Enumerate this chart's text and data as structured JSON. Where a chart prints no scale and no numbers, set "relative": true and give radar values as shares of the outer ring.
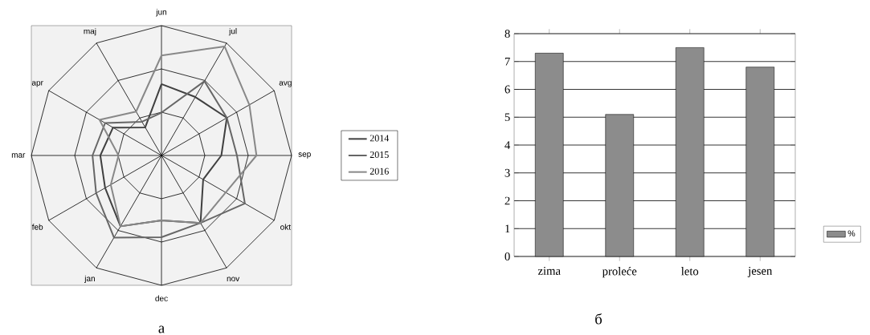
{
  "chart_data": [
    {
      "type": "radar",
      "categories": [
        "jun",
        "jul",
        "avg",
        "sep",
        "okt",
        "nov",
        "dec",
        "jan",
        "feb",
        "mar",
        "apr",
        "maj"
      ],
      "relative": true,
      "grid": true,
      "legend": "right",
      "annotations": [
        "a"
      ],
      "series": [
        {
          "name": "2014",
          "color": "#404040",
          "values": [
            0.55,
            0.52,
            0.58,
            0.46,
            0.37,
            0.6,
            0.5,
            0.63,
            0.5,
            0.47,
            0.43,
            0.25
          ]
        },
        {
          "name": "2015",
          "color": "#666666",
          "values": [
            0.33,
            0.66,
            0.58,
            0.58,
            0.74,
            0.6,
            0.63,
            0.73,
            0.58,
            0.53,
            0.5,
            0.3
          ]
        },
        {
          "name": "2016",
          "color": "#888888",
          "values": [
            0.77,
            0.97,
            0.78,
            0.73,
            0.57,
            0.6,
            0.5,
            0.63,
            0.45,
            0.33,
            0.55,
            0.39
          ]
        }
      ]
    },
    {
      "type": "bar",
      "categories": [
        "zima",
        "proleće",
        "leto",
        "jesen"
      ],
      "ylim": [
        0,
        8
      ],
      "yticks": [
        0,
        1,
        2,
        3,
        4,
        5,
        6,
        7,
        8
      ],
      "grid": "y",
      "legend": "right",
      "annotations": [
        "б"
      ],
      "series": [
        {
          "name": "%",
          "color": "#8c8c8c",
          "values": [
            7.3,
            5.1,
            7.5,
            6.8
          ]
        }
      ]
    }
  ]
}
